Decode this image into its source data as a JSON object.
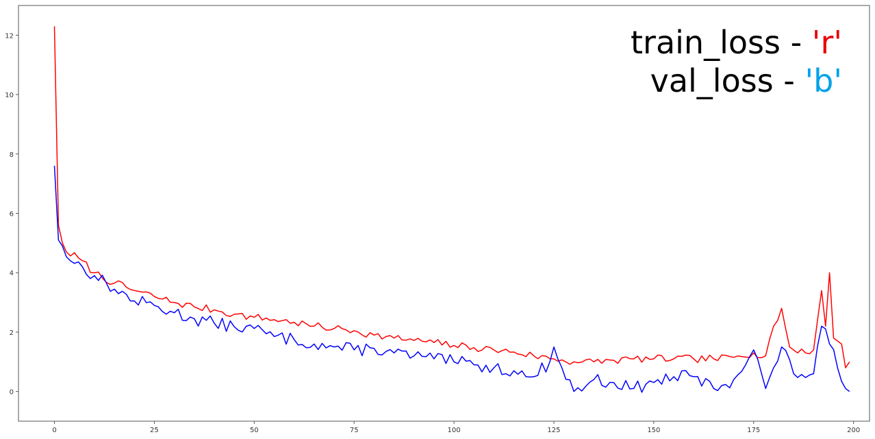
{
  "chart_data": {
    "type": "line",
    "title": "",
    "xlabel": "",
    "ylabel": "",
    "xlim": [
      -9,
      204
    ],
    "ylim": [
      -1.0,
      13.0
    ],
    "xticks": [
      0,
      25,
      50,
      75,
      100,
      125,
      150,
      175,
      200
    ],
    "yticks": [
      0,
      2,
      4,
      6,
      8,
      10,
      12
    ],
    "grid": false,
    "legend_position": "top-right",
    "legend": [
      {
        "prefix": "train_loss - ",
        "code": "'r'",
        "color": "#e8000b"
      },
      {
        "prefix": "val_loss - ",
        "code": "'b'",
        "color": "#00a2e8"
      }
    ],
    "series": [
      {
        "name": "train_loss",
        "color": "#ff0000",
        "keypoints": [
          [
            0,
            12.3
          ],
          [
            1,
            5.6
          ],
          [
            2,
            5.0
          ],
          [
            3,
            4.7
          ],
          [
            6,
            4.5
          ],
          [
            10,
            4.0
          ],
          [
            15,
            3.65
          ],
          [
            20,
            3.4
          ],
          [
            25,
            3.2
          ],
          [
            30,
            3.0
          ],
          [
            35,
            2.85
          ],
          [
            40,
            2.75
          ],
          [
            45,
            2.6
          ],
          [
            50,
            2.5
          ],
          [
            55,
            2.42
          ],
          [
            60,
            2.33
          ],
          [
            65,
            2.2
          ],
          [
            70,
            2.12
          ],
          [
            75,
            2.05
          ],
          [
            80,
            1.9
          ],
          [
            85,
            1.8
          ],
          [
            90,
            1.72
          ],
          [
            95,
            1.65
          ],
          [
            100,
            1.55
          ],
          [
            105,
            1.48
          ],
          [
            110,
            1.4
          ],
          [
            115,
            1.33
          ],
          [
            120,
            1.2
          ],
          [
            125,
            1.1
          ],
          [
            130,
            1.0
          ],
          [
            135,
            1.0
          ],
          [
            140,
            1.05
          ],
          [
            145,
            1.1
          ],
          [
            150,
            1.1
          ],
          [
            155,
            1.1
          ],
          [
            160,
            1.1
          ],
          [
            165,
            1.1
          ],
          [
            170,
            1.15
          ],
          [
            175,
            1.3
          ],
          [
            178,
            1.2
          ],
          [
            180,
            2.2
          ],
          [
            182,
            2.8
          ],
          [
            184,
            1.5
          ],
          [
            186,
            1.3
          ],
          [
            188,
            1.3
          ],
          [
            190,
            1.4
          ],
          [
            192,
            3.4
          ],
          [
            193,
            2.2
          ],
          [
            194,
            4.0
          ],
          [
            195,
            1.8
          ],
          [
            197,
            1.6
          ],
          [
            198,
            0.8
          ],
          [
            199,
            1.0
          ]
        ],
        "noise": 0.13,
        "seed": 7
      },
      {
        "name": "val_loss",
        "color": "#0000ff",
        "keypoints": [
          [
            0,
            7.6
          ],
          [
            1,
            5.1
          ],
          [
            2,
            4.9
          ],
          [
            4,
            4.4
          ],
          [
            7,
            4.2
          ],
          [
            10,
            3.9
          ],
          [
            15,
            3.45
          ],
          [
            20,
            3.05
          ],
          [
            25,
            2.9
          ],
          [
            30,
            2.65
          ],
          [
            35,
            2.45
          ],
          [
            40,
            2.3
          ],
          [
            45,
            2.18
          ],
          [
            50,
            2.12
          ],
          [
            55,
            1.85
          ],
          [
            60,
            1.75
          ],
          [
            65,
            1.6
          ],
          [
            70,
            1.5
          ],
          [
            75,
            1.4
          ],
          [
            80,
            1.45
          ],
          [
            85,
            1.3
          ],
          [
            90,
            1.2
          ],
          [
            95,
            1.1
          ],
          [
            100,
            1.0
          ],
          [
            105,
            0.9
          ],
          [
            110,
            0.8
          ],
          [
            115,
            0.7
          ],
          [
            118,
            0.5
          ],
          [
            120,
            0.5
          ],
          [
            124,
            1.0
          ],
          [
            125,
            1.5
          ],
          [
            127,
            0.8
          ],
          [
            130,
            0.0
          ],
          [
            135,
            0.4
          ],
          [
            140,
            0.3
          ],
          [
            145,
            0.1
          ],
          [
            150,
            0.3
          ],
          [
            155,
            0.5
          ],
          [
            160,
            0.5
          ],
          [
            165,
            0.1
          ],
          [
            170,
            0.4
          ],
          [
            175,
            1.4
          ],
          [
            178,
            0.1
          ],
          [
            180,
            0.8
          ],
          [
            182,
            1.5
          ],
          [
            185,
            0.6
          ],
          [
            190,
            0.6
          ],
          [
            192,
            2.2
          ],
          [
            194,
            1.6
          ],
          [
            196,
            0.8
          ],
          [
            198,
            0.1
          ],
          [
            199,
            0.0
          ]
        ],
        "noise": 0.22,
        "seed": 13
      }
    ]
  }
}
